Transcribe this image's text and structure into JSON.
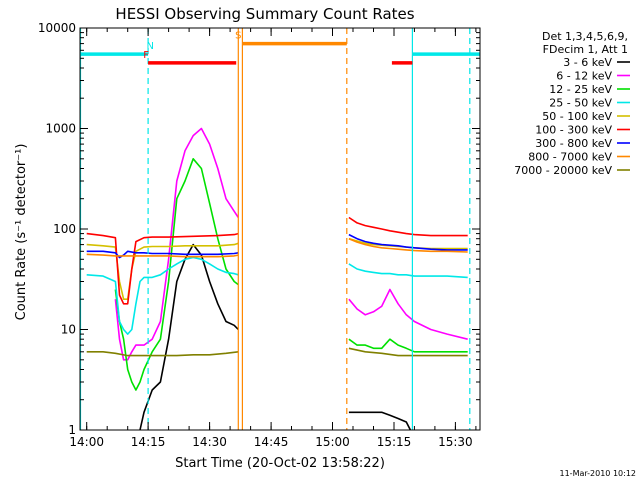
{
  "chart_data": {
    "type": "line",
    "title": "HESSI Observing Summary Count Rates",
    "xlabel": "Start Time (20-Oct-02 13:58:22)",
    "ylabel": "Count Rate (s⁻¹ detector⁻¹)",
    "footer": "11-Mar-2010 10:12",
    "x_scale": "time",
    "y_scale": "log",
    "xlim": [
      "13:58:22",
      "15:36:00"
    ],
    "ylim": [
      1,
      10000
    ],
    "x_ticks": [
      "14:00",
      "14:15",
      "14:30",
      "14:45",
      "15:00",
      "15:15",
      "15:30"
    ],
    "y_ticks": [
      {
        "value": 1,
        "label": "1"
      },
      {
        "value": 10,
        "label": "10"
      },
      {
        "value": 100,
        "label": "100"
      },
      {
        "value": 1000,
        "label": "1000"
      },
      {
        "value": 10000,
        "label": "10000"
      }
    ],
    "legend": {
      "position": "right",
      "header_lines": [
        "Det 1,3,4,5,6,9,",
        "FDecim 1, Att 1"
      ],
      "entries": [
        {
          "label": "3 - 6 keV",
          "color": "#000000"
        },
        {
          "label": "6 - 12 keV",
          "color": "#ff00ff"
        },
        {
          "label": "12 - 25 keV",
          "color": "#00e000"
        },
        {
          "label": "25 - 50 keV",
          "color": "#00e8e8"
        },
        {
          "label": "50 - 100 keV",
          "color": "#d4c000"
        },
        {
          "label": "100 - 300 keV",
          "color": "#ff0000"
        },
        {
          "label": "300 - 800 keV",
          "color": "#0000ff"
        },
        {
          "label": "800 - 7000 keV",
          "color": "#ff8800"
        },
        {
          "label": "7000 - 20000 keV",
          "color": "#808000"
        }
      ]
    },
    "markers": [
      {
        "label": "N",
        "color": "#00e8e8",
        "y": 5500,
        "segments": [
          [
            "13:58:22",
            "14:15:00"
          ],
          [
            "15:19:30",
            "15:36:00"
          ]
        ],
        "label_time": "14:15:30"
      },
      {
        "label": "F",
        "color": "#ff0000",
        "y": 4500,
        "segments": [
          [
            "14:15:00",
            "14:36:30"
          ],
          [
            "15:14:30",
            "15:19:30"
          ]
        ],
        "label_time": "14:14:30"
      },
      {
        "label": "S",
        "color": "#ff8800",
        "y": 7000,
        "segments": [
          [
            "14:38:00",
            "15:03:30"
          ]
        ],
        "label_time": "14:37:00"
      }
    ],
    "vertical_lines": [
      {
        "time": "13:58:30",
        "color": "#00e8e8",
        "style": "solid"
      },
      {
        "time": "14:15:00",
        "color": "#00e8e8",
        "style": "dashed"
      },
      {
        "time": "14:37:00",
        "color": "#ff8800",
        "style": "solid"
      },
      {
        "time": "14:38:00",
        "color": "#ff8800",
        "style": "solid"
      },
      {
        "time": "15:03:30",
        "color": "#ff8800",
        "style": "dashed"
      },
      {
        "time": "15:19:30",
        "color": "#00e8e8",
        "style": "solid"
      },
      {
        "time": "15:33:30",
        "color": "#00e8e8",
        "style": "dashed"
      }
    ],
    "series": [
      {
        "name": "3 - 6 keV",
        "color": "#000000",
        "points": [
          [
            "14:00",
            1
          ],
          [
            "14:13",
            1
          ],
          [
            "14:14",
            1.5
          ],
          [
            "14:16",
            2.5
          ],
          [
            "14:18",
            3
          ],
          [
            "14:20",
            8
          ],
          [
            "14:22",
            30
          ],
          [
            "14:24",
            50
          ],
          [
            "14:26",
            70
          ],
          [
            "14:28",
            55
          ],
          [
            "14:30",
            30
          ],
          [
            "14:32",
            18
          ],
          [
            "14:34",
            12
          ],
          [
            "14:36",
            11
          ],
          [
            "14:37",
            10
          ],
          [
            "15:04",
            1.5
          ],
          [
            "15:06",
            1.5
          ],
          [
            "15:08",
            1.5
          ],
          [
            "15:10",
            1.5
          ],
          [
            "15:12",
            1.5
          ],
          [
            "15:14",
            1.4
          ],
          [
            "15:16",
            1.3
          ],
          [
            "15:18",
            1.2
          ],
          [
            "15:19",
            1
          ]
        ]
      },
      {
        "name": "6 - 12 keV",
        "color": "#ff00ff",
        "points": [
          [
            "14:07",
            20
          ],
          [
            "14:08",
            8
          ],
          [
            "14:09",
            5
          ],
          [
            "14:10",
            5
          ],
          [
            "14:11",
            6
          ],
          [
            "14:12",
            7
          ],
          [
            "14:13",
            7
          ],
          [
            "14:14",
            7
          ],
          [
            "14:16",
            8
          ],
          [
            "14:18",
            12
          ],
          [
            "14:20",
            50
          ],
          [
            "14:22",
            300
          ],
          [
            "14:24",
            600
          ],
          [
            "14:26",
            850
          ],
          [
            "14:28",
            1000
          ],
          [
            "14:30",
            700
          ],
          [
            "14:32",
            400
          ],
          [
            "14:34",
            200
          ],
          [
            "14:36",
            150
          ],
          [
            "14:37",
            130
          ],
          [
            "15:04",
            20
          ],
          [
            "15:06",
            16
          ],
          [
            "15:08",
            14
          ],
          [
            "15:10",
            15
          ],
          [
            "15:12",
            17
          ],
          [
            "15:14",
            25
          ],
          [
            "15:16",
            18
          ],
          [
            "15:18",
            14
          ],
          [
            "15:20",
            12
          ],
          [
            "15:24",
            10
          ],
          [
            "15:28",
            9
          ],
          [
            "15:33",
            8
          ]
        ]
      },
      {
        "name": "12 - 25 keV",
        "color": "#00e000",
        "points": [
          [
            "14:07",
            25
          ],
          [
            "14:08",
            12
          ],
          [
            "14:09",
            8
          ],
          [
            "14:10",
            4
          ],
          [
            "14:11",
            3
          ],
          [
            "14:12",
            2.5
          ],
          [
            "14:13",
            3
          ],
          [
            "14:14",
            4
          ],
          [
            "14:16",
            6
          ],
          [
            "14:18",
            8
          ],
          [
            "14:20",
            30
          ],
          [
            "14:22",
            200
          ],
          [
            "14:24",
            300
          ],
          [
            "14:26",
            500
          ],
          [
            "14:28",
            400
          ],
          [
            "14:30",
            180
          ],
          [
            "14:32",
            80
          ],
          [
            "14:34",
            40
          ],
          [
            "14:36",
            30
          ],
          [
            "14:37",
            28
          ],
          [
            "15:04",
            8
          ],
          [
            "15:06",
            7
          ],
          [
            "15:08",
            7
          ],
          [
            "15:10",
            6.5
          ],
          [
            "15:12",
            6.5
          ],
          [
            "15:14",
            8
          ],
          [
            "15:16",
            7
          ],
          [
            "15:18",
            6.5
          ],
          [
            "15:20",
            6
          ],
          [
            "15:24",
            6
          ],
          [
            "15:28",
            6
          ],
          [
            "15:33",
            6
          ]
        ]
      },
      {
        "name": "25 - 50 keV",
        "color": "#00e8e8",
        "points": [
          [
            "14:00",
            35
          ],
          [
            "14:04",
            34
          ],
          [
            "14:07",
            30
          ],
          [
            "14:08",
            12
          ],
          [
            "14:09",
            10
          ],
          [
            "14:10",
            9
          ],
          [
            "14:11",
            10
          ],
          [
            "14:12",
            18
          ],
          [
            "14:13",
            30
          ],
          [
            "14:14",
            33
          ],
          [
            "14:16",
            33
          ],
          [
            "14:18",
            35
          ],
          [
            "14:20",
            40
          ],
          [
            "14:22",
            45
          ],
          [
            "14:24",
            50
          ],
          [
            "14:26",
            52
          ],
          [
            "14:28",
            50
          ],
          [
            "14:30",
            45
          ],
          [
            "14:32",
            40
          ],
          [
            "14:34",
            37
          ],
          [
            "14:36",
            36
          ],
          [
            "14:37",
            35
          ],
          [
            "15:04",
            45
          ],
          [
            "15:06",
            40
          ],
          [
            "15:08",
            38
          ],
          [
            "15:10",
            37
          ],
          [
            "15:12",
            36
          ],
          [
            "15:14",
            36
          ],
          [
            "15:16",
            35
          ],
          [
            "15:18",
            35
          ],
          [
            "15:20",
            34
          ],
          [
            "15:24",
            34
          ],
          [
            "15:28",
            34
          ],
          [
            "15:33",
            33
          ]
        ]
      },
      {
        "name": "50 - 100 keV",
        "color": "#d4c000",
        "points": [
          [
            "14:00",
            70
          ],
          [
            "14:04",
            68
          ],
          [
            "14:07",
            66
          ],
          [
            "14:08",
            30
          ],
          [
            "14:09",
            20
          ],
          [
            "14:10",
            20
          ],
          [
            "14:11",
            40
          ],
          [
            "14:12",
            60
          ],
          [
            "14:14",
            66
          ],
          [
            "14:16",
            67
          ],
          [
            "14:20",
            67
          ],
          [
            "14:24",
            68
          ],
          [
            "14:28",
            68
          ],
          [
            "14:32",
            68
          ],
          [
            "14:36",
            70
          ],
          [
            "14:37",
            72
          ],
          [
            "15:04",
            80
          ],
          [
            "15:06",
            76
          ],
          [
            "15:08",
            72
          ],
          [
            "15:10",
            70
          ],
          [
            "15:12",
            69
          ],
          [
            "15:14",
            68
          ],
          [
            "15:16",
            67
          ],
          [
            "15:18",
            66
          ],
          [
            "15:20",
            65
          ],
          [
            "15:24",
            64
          ],
          [
            "15:28",
            64
          ],
          [
            "15:33",
            64
          ]
        ]
      },
      {
        "name": "100 - 300 keV",
        "color": "#ff0000",
        "points": [
          [
            "14:00",
            90
          ],
          [
            "14:04",
            86
          ],
          [
            "14:07",
            82
          ],
          [
            "14:08",
            22
          ],
          [
            "14:09",
            18
          ],
          [
            "14:10",
            18
          ],
          [
            "14:11",
            40
          ],
          [
            "14:12",
            75
          ],
          [
            "14:14",
            82
          ],
          [
            "14:16",
            83
          ],
          [
            "14:20",
            83
          ],
          [
            "14:24",
            84
          ],
          [
            "14:28",
            85
          ],
          [
            "14:32",
            86
          ],
          [
            "14:36",
            88
          ],
          [
            "14:37",
            90
          ],
          [
            "15:04",
            130
          ],
          [
            "15:06",
            115
          ],
          [
            "15:08",
            108
          ],
          [
            "15:10",
            104
          ],
          [
            "15:12",
            100
          ],
          [
            "15:14",
            96
          ],
          [
            "15:16",
            93
          ],
          [
            "15:18",
            90
          ],
          [
            "15:20",
            88
          ],
          [
            "15:24",
            86
          ],
          [
            "15:28",
            86
          ],
          [
            "15:33",
            86
          ]
        ]
      },
      {
        "name": "300 - 800 keV",
        "color": "#0000ff",
        "points": [
          [
            "14:00",
            60
          ],
          [
            "14:04",
            60
          ],
          [
            "14:07",
            58
          ],
          [
            "14:08",
            52
          ],
          [
            "14:09",
            55
          ],
          [
            "14:10",
            60
          ],
          [
            "14:12",
            58
          ],
          [
            "14:14",
            58
          ],
          [
            "14:16",
            57
          ],
          [
            "14:20",
            57
          ],
          [
            "14:24",
            56
          ],
          [
            "14:28",
            56
          ],
          [
            "14:32",
            56
          ],
          [
            "14:36",
            57
          ],
          [
            "14:37",
            58
          ],
          [
            "15:04",
            88
          ],
          [
            "15:06",
            80
          ],
          [
            "15:08",
            75
          ],
          [
            "15:10",
            72
          ],
          [
            "15:12",
            70
          ],
          [
            "15:14",
            69
          ],
          [
            "15:16",
            68
          ],
          [
            "15:18",
            66
          ],
          [
            "15:20",
            65
          ],
          [
            "15:24",
            63
          ],
          [
            "15:28",
            62
          ],
          [
            "15:33",
            62
          ]
        ]
      },
      {
        "name": "800 - 7000 keV",
        "color": "#ff8800",
        "points": [
          [
            "14:00",
            56
          ],
          [
            "14:04",
            55
          ],
          [
            "14:07",
            54
          ],
          [
            "14:09",
            54
          ],
          [
            "14:12",
            54
          ],
          [
            "14:14",
            54
          ],
          [
            "14:16",
            54
          ],
          [
            "14:20",
            54
          ],
          [
            "14:24",
            53
          ],
          [
            "14:28",
            53
          ],
          [
            "14:32",
            53
          ],
          [
            "14:36",
            54
          ],
          [
            "14:37",
            55
          ],
          [
            "15:04",
            80
          ],
          [
            "15:06",
            74
          ],
          [
            "15:08",
            70
          ],
          [
            "15:10",
            67
          ],
          [
            "15:12",
            65
          ],
          [
            "15:14",
            64
          ],
          [
            "15:16",
            63
          ],
          [
            "15:18",
            62
          ],
          [
            "15:20",
            61
          ],
          [
            "15:24",
            60
          ],
          [
            "15:28",
            60
          ],
          [
            "15:33",
            59
          ]
        ]
      },
      {
        "name": "7000 - 20000 keV",
        "color": "#808000",
        "points": [
          [
            "14:00",
            6
          ],
          [
            "14:04",
            6
          ],
          [
            "14:07",
            5.8
          ],
          [
            "14:10",
            5.5
          ],
          [
            "14:14",
            5.5
          ],
          [
            "14:18",
            5.5
          ],
          [
            "14:22",
            5.5
          ],
          [
            "14:26",
            5.6
          ],
          [
            "14:30",
            5.6
          ],
          [
            "14:34",
            5.8
          ],
          [
            "14:37",
            6
          ],
          [
            "15:04",
            6.5
          ],
          [
            "15:08",
            6
          ],
          [
            "15:12",
            5.8
          ],
          [
            "15:16",
            5.5
          ],
          [
            "15:20",
            5.5
          ],
          [
            "15:24",
            5.5
          ],
          [
            "15:28",
            5.5
          ],
          [
            "15:33",
            5.5
          ]
        ]
      }
    ]
  }
}
